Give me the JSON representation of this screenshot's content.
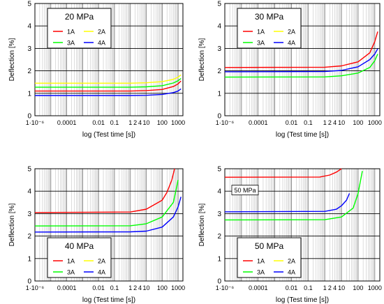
{
  "chart_data": [
    {
      "type": "line",
      "title": "20 MPa",
      "xlabel": "log (Test time [s])",
      "ylabel": "Deflection [%]",
      "xscale": "log",
      "xlim": [
        1e-06,
        2000
      ],
      "ylim": [
        0,
        5
      ],
      "x_tick_labels": [
        "1·10⁻⁶",
        "0.0001",
        "0.01",
        "0.1",
        "1",
        "2",
        "4",
        "10",
        "100",
        "1000"
      ],
      "y_tick_labels": [
        "0",
        "1",
        "2",
        "3",
        "4",
        "5"
      ],
      "grid": true,
      "legend": "top-left",
      "colors": {
        "1A": "#ff0000",
        "2A": "#ffff00",
        "3A": "#00ff00",
        "4A": "#0000ff"
      },
      "series": [
        {
          "name": "1A",
          "x": [
            1e-06,
            1,
            10,
            100,
            500,
            1000,
            1500
          ],
          "y": [
            1.1,
            1.1,
            1.12,
            1.17,
            1.3,
            1.42,
            1.55
          ]
        },
        {
          "name": "2A",
          "x": [
            1e-06,
            1,
            10,
            100,
            500,
            1000,
            1500
          ],
          "y": [
            1.45,
            1.45,
            1.47,
            1.52,
            1.62,
            1.72,
            1.82
          ]
        },
        {
          "name": "3A",
          "x": [
            1e-06,
            1,
            10,
            100,
            500,
            1000,
            1500
          ],
          "y": [
            1.27,
            1.27,
            1.29,
            1.34,
            1.46,
            1.56,
            1.66
          ]
        },
        {
          "name": "4A",
          "x": [
            1e-06,
            1,
            10,
            100,
            500,
            1000,
            1500
          ],
          "y": [
            0.9,
            0.9,
            0.91,
            0.95,
            1.03,
            1.1,
            1.2
          ]
        }
      ]
    },
    {
      "type": "line",
      "title": "30 MPa",
      "xlabel": "log (Test time [s])",
      "ylabel": "Deflection [%]",
      "xscale": "log",
      "xlim": [
        1e-06,
        2000
      ],
      "ylim": [
        0,
        5
      ],
      "x_tick_labels": [
        "1·10⁻⁶",
        "0.0001",
        "0.01",
        "0.1",
        "1",
        "2",
        "4",
        "10",
        "100",
        "1000"
      ],
      "y_tick_labels": [
        "0",
        "1",
        "2",
        "3",
        "4",
        "5"
      ],
      "grid": true,
      "legend": "top-left",
      "colors": {
        "1A": "#ff0000",
        "2A": "#ffff00",
        "3A": "#00ff00",
        "4A": "#0000ff"
      },
      "series": [
        {
          "name": "1A",
          "x": [
            1e-06,
            1,
            10,
            100,
            500,
            1000,
            1500
          ],
          "y": [
            2.15,
            2.16,
            2.22,
            2.4,
            2.8,
            3.3,
            3.75
          ]
        },
        {
          "name": "3A",
          "x": [
            1e-06,
            1,
            10,
            100,
            500,
            1000,
            1500
          ],
          "y": [
            1.72,
            1.73,
            1.78,
            1.9,
            2.15,
            2.45,
            2.75
          ]
        },
        {
          "name": "4A",
          "x": [
            1e-06,
            1,
            10,
            100,
            500,
            1000,
            1500
          ],
          "y": [
            1.96,
            1.97,
            2.02,
            2.18,
            2.5,
            2.75,
            2.98
          ]
        }
      ]
    },
    {
      "type": "line",
      "title": "40 MPa",
      "xlabel": "log (Test time [s])",
      "ylabel": "Deflection [%]",
      "xscale": "log",
      "xlim": [
        1e-06,
        2000
      ],
      "ylim": [
        0,
        5
      ],
      "x_tick_labels": [
        "1·10⁻⁶",
        "0.0001",
        "0.01",
        "0.1",
        "1",
        "2",
        "4",
        "10",
        "100",
        "1000"
      ],
      "y_tick_labels": [
        "0",
        "1",
        "2",
        "3",
        "4",
        "5"
      ],
      "grid": true,
      "legend": "bottom-left",
      "colors": {
        "1A": "#ff0000",
        "2A": "#ffff00",
        "3A": "#00ff00",
        "4A": "#0000ff"
      },
      "series": [
        {
          "name": "1A",
          "x": [
            1e-06,
            1,
            10,
            100,
            200,
            400,
            600
          ],
          "y": [
            3.05,
            3.07,
            3.2,
            3.6,
            3.95,
            4.5,
            5.0
          ]
        },
        {
          "name": "3A",
          "x": [
            1e-06,
            1,
            10,
            100,
            500,
            1000
          ],
          "y": [
            2.45,
            2.46,
            2.55,
            2.85,
            3.5,
            4.5
          ]
        },
        {
          "name": "4A",
          "x": [
            1e-06,
            1,
            10,
            100,
            500,
            1000,
            1500
          ],
          "y": [
            2.18,
            2.19,
            2.22,
            2.4,
            2.85,
            3.3,
            3.75
          ]
        }
      ]
    },
    {
      "type": "line",
      "title": "50 MPa",
      "xlabel": "log (Test time [s])",
      "ylabel": "Deflection [%]",
      "xscale": "log",
      "xlim": [
        1e-06,
        2000
      ],
      "ylim": [
        0,
        5
      ],
      "x_tick_labels": [
        "1·10⁻⁶",
        "0.0001",
        "0.01",
        "0.1",
        "1",
        "2",
        "4",
        "10",
        "100",
        "1000"
      ],
      "y_tick_labels": [
        "0",
        "1",
        "2",
        "3",
        "4",
        "5"
      ],
      "grid": true,
      "legend": "bottom-left",
      "annotation": "50 MPa",
      "colors": {
        "1A": "#ff0000",
        "2A": "#ffff00",
        "3A": "#00ff00",
        "4A": "#0000ff"
      },
      "series": [
        {
          "name": "1A",
          "x": [
            1e-06,
            0.5,
            2,
            5,
            10
          ],
          "y": [
            4.62,
            4.63,
            4.72,
            4.85,
            5.0
          ]
        },
        {
          "name": "3A",
          "x": [
            1e-06,
            1,
            10,
            50,
            100,
            180
          ],
          "y": [
            2.72,
            2.73,
            2.85,
            3.25,
            3.9,
            4.9
          ]
        },
        {
          "name": "4A",
          "x": [
            1e-06,
            1,
            5,
            10,
            20,
            30
          ],
          "y": [
            3.08,
            3.1,
            3.2,
            3.35,
            3.6,
            3.9
          ]
        }
      ]
    }
  ]
}
